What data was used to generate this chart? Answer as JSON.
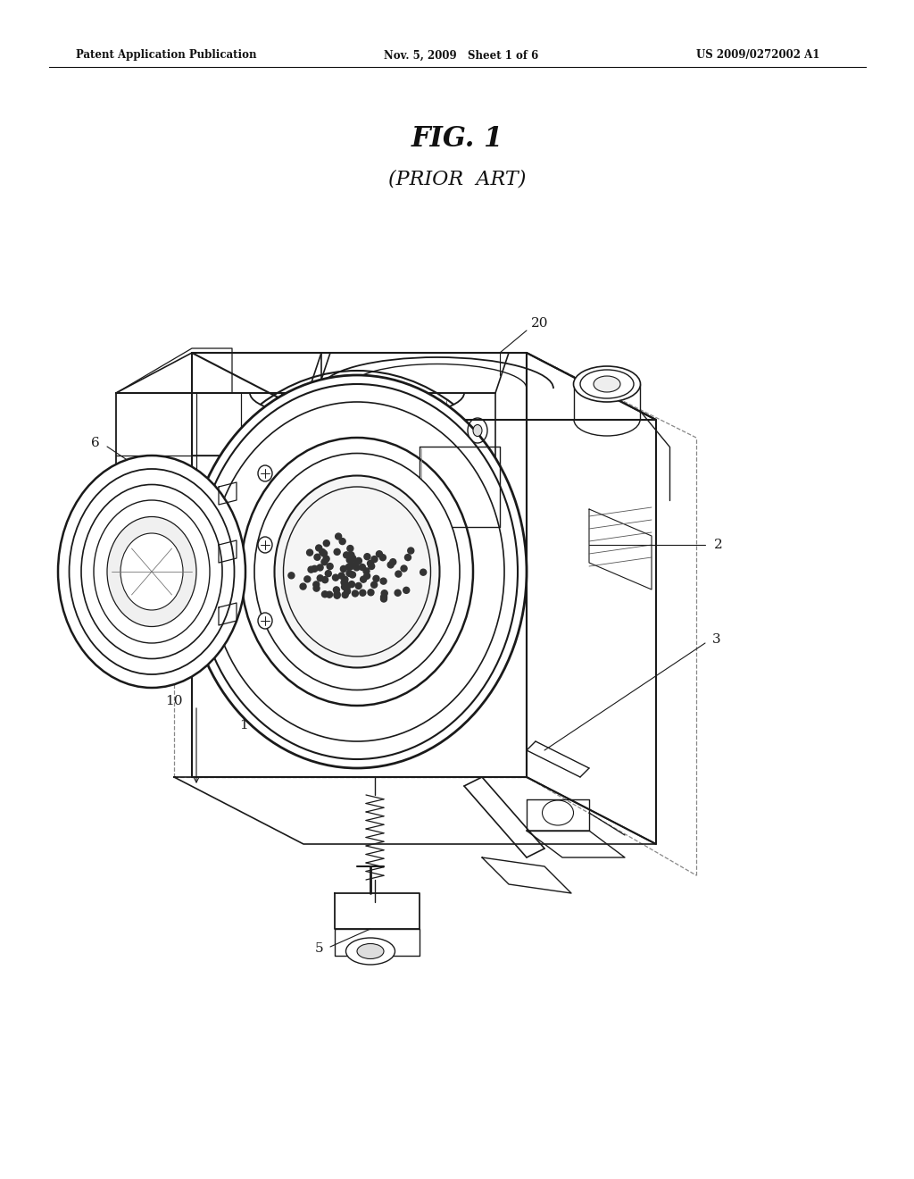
{
  "bg_color": "#ffffff",
  "header_left": "Patent Application Publication",
  "header_mid": "Nov. 5, 2009   Sheet 1 of 6",
  "header_right": "US 2009/0272002 A1",
  "fig_title": "FIG. 1",
  "fig_subtitle": "(PRIOR  ART)",
  "line_color": "#1a1a1a",
  "dashed_color": "#888888",
  "label_fontsize": 11,
  "header_fontsize": 8.5,
  "title_fontsize": 22,
  "subtitle_fontsize": 16
}
